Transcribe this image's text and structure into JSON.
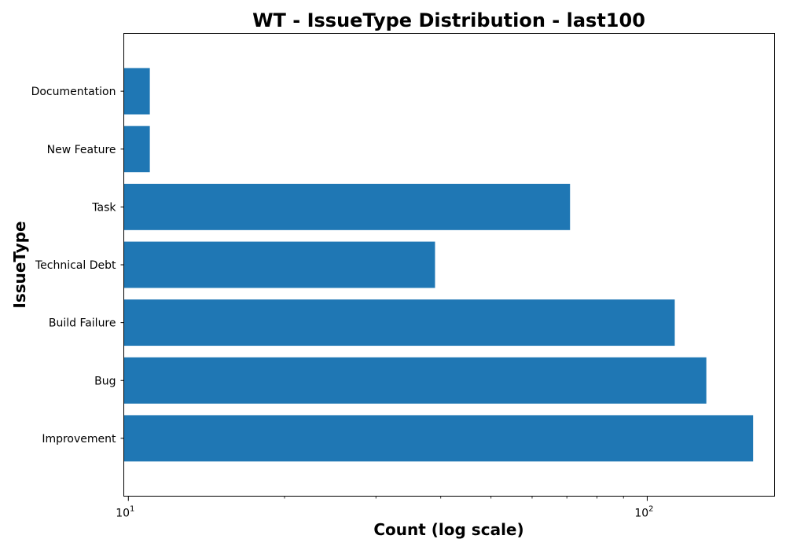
{
  "chart_data": {
    "type": "bar",
    "orientation": "horizontal",
    "title": "WT - IssueType Distribution - last100",
    "xlabel": "Count (log scale)",
    "ylabel": "IssueType",
    "x_scale": "log",
    "xlim": [
      9.8,
      176
    ],
    "categories": [
      "Improvement",
      "Bug",
      "Build Failure",
      "Technical Debt",
      "Task",
      "New Feature",
      "Documentation"
    ],
    "values": [
      160,
      130,
      113,
      39,
      71,
      11,
      11
    ],
    "bar_color": "#1f77b4",
    "x_ticks": [
      {
        "value": 10,
        "base": "10",
        "exp": "1"
      },
      {
        "value": 100,
        "base": "10",
        "exp": "2"
      }
    ],
    "grid": false
  }
}
